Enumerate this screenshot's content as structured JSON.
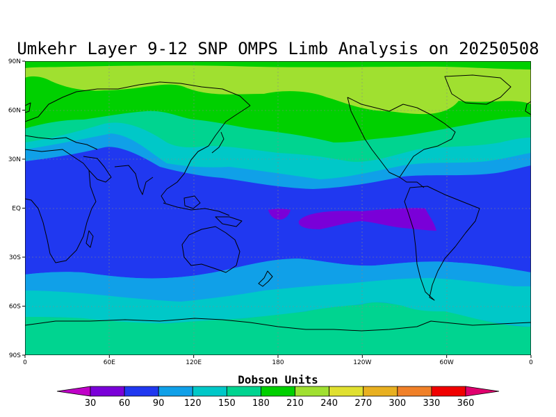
{
  "title": "Umkehr Layer 9-12 SNP OMPS Limb Analysis on 20250508",
  "map": {
    "lat_ticks": [
      "90N",
      "60N",
      "30N",
      "EQ",
      "30S",
      "60S",
      "90S"
    ],
    "lon_ticks": [
      "0",
      "60E",
      "120E",
      "180",
      "120W",
      "60W",
      "0"
    ],
    "gridlines": true
  },
  "colorbar": {
    "title": "Dobson Units",
    "labels": [
      "30",
      "60",
      "90",
      "120",
      "150",
      "180",
      "210",
      "240",
      "270",
      "300",
      "330",
      "360"
    ],
    "under_color": "#c000c8",
    "over_color": "#e0006e",
    "colors": [
      "#7a00d8",
      "#2038f0",
      "#10a0e8",
      "#00c8c8",
      "#00d490",
      "#00d000",
      "#a0e030",
      "#e0e030",
      "#e8b020",
      "#f08028",
      "#f00000"
    ]
  },
  "map_colors": {
    "band_210_240": "#a0e030",
    "band_180_210": "#00d000",
    "band_150_180": "#00d490",
    "band_120_150": "#00c8c8",
    "band_90_120": "#10a0e8",
    "band_60_90": "#2038f0",
    "band_30_60": "#7a00d8"
  }
}
